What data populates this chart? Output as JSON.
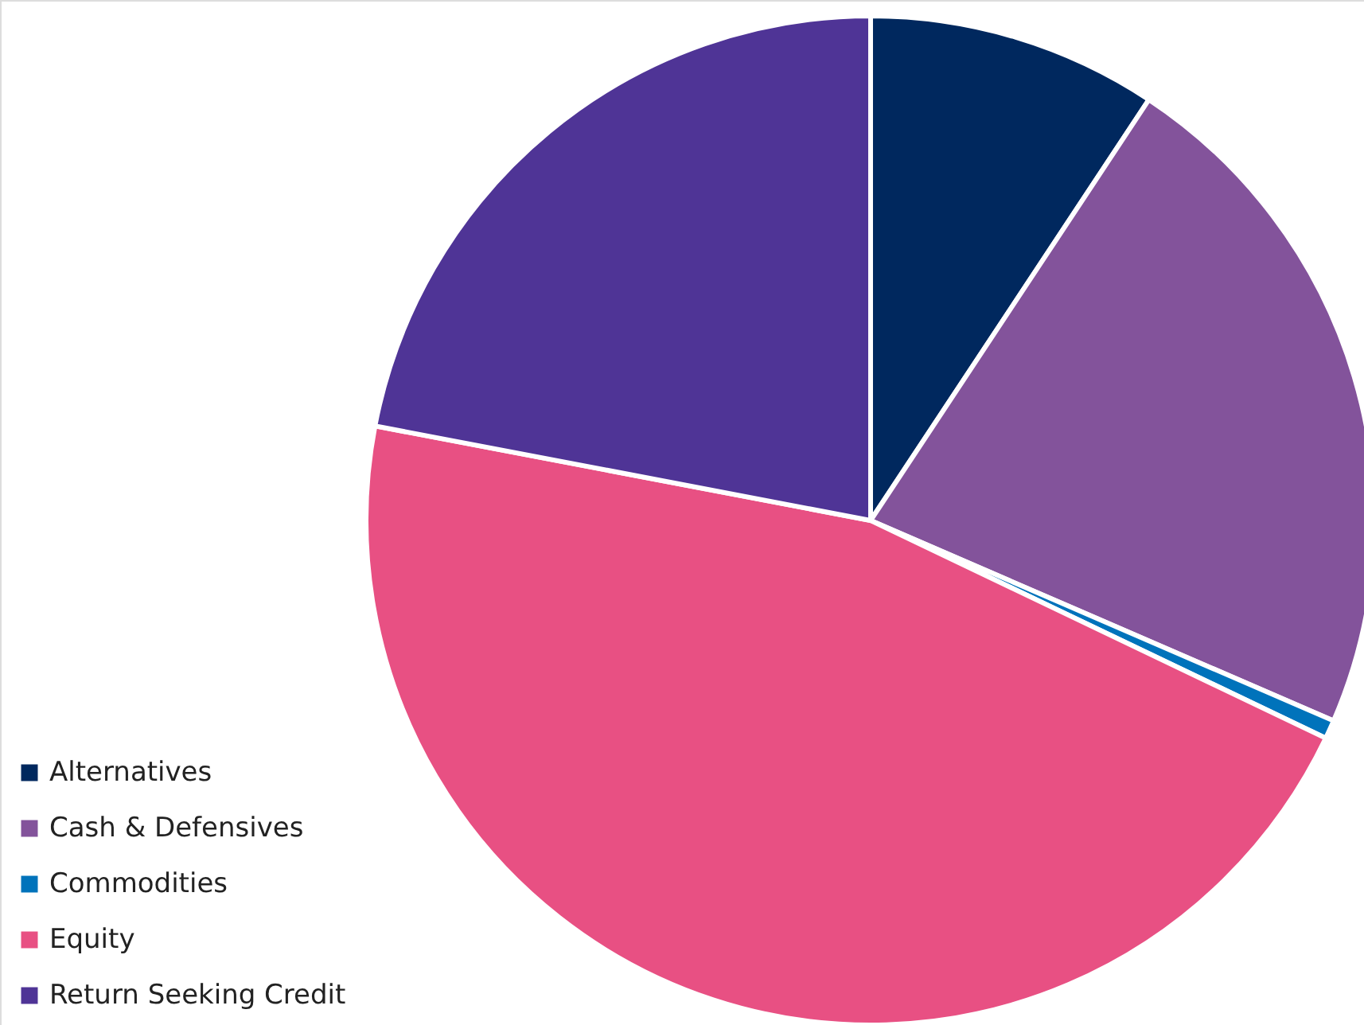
{
  "chart_data": {
    "type": "pie",
    "categories": [
      "Alternatives",
      "Cash & Defensives",
      "Commodities",
      "Equity",
      "Return Seeking Credit"
    ],
    "values": [
      9.3,
      22.2,
      0.6,
      45.9,
      22.0
    ],
    "colors": [
      "#00285e",
      "#83539b",
      "#0073bb",
      "#e85083",
      "#4f3496"
    ],
    "legend": "bottom left"
  }
}
